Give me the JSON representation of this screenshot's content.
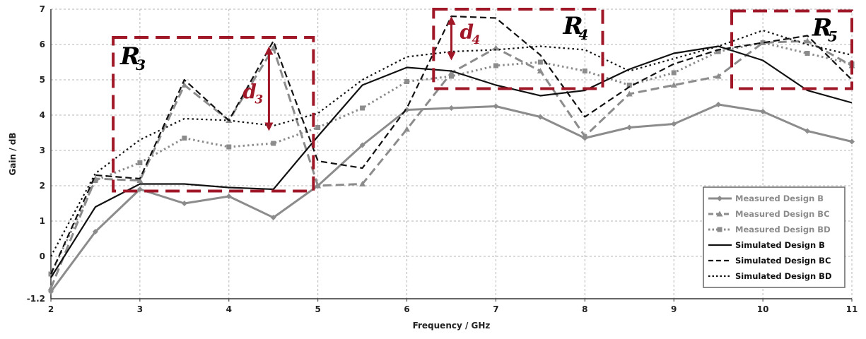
{
  "chart_data": {
    "type": "line",
    "xlabel": "Frequency / GHz",
    "ylabel": "Gain / dB",
    "xlim": [
      2,
      11
    ],
    "ylim": [
      -1.2,
      7
    ],
    "x_ticks": [
      "2",
      "3",
      "4",
      "5",
      "6",
      "7",
      "8",
      "9",
      "10",
      "11"
    ],
    "y_ticks": [
      "-1.2",
      "0",
      "1",
      "2",
      "3",
      "4",
      "5",
      "6",
      "7"
    ],
    "grid": true,
    "legend_position": "bottom-right",
    "x": [
      2,
      2.5,
      3,
      3.5,
      4,
      4.5,
      5,
      5.5,
      6,
      6.5,
      7,
      7.5,
      8,
      8.5,
      9,
      9.5,
      10,
      10.5,
      11
    ],
    "series": [
      {
        "name": "Measured Design B",
        "color": "#8c8c8c",
        "style": "solid-marker-diamond",
        "values": [
          -1.0,
          0.7,
          1.9,
          1.5,
          1.7,
          1.1,
          2.0,
          3.15,
          4.15,
          4.2,
          4.25,
          3.95,
          3.35,
          3.65,
          3.75,
          4.3,
          4.1,
          3.55,
          3.25
        ]
      },
      {
        "name": "Measured Design BC",
        "color": "#8c8c8c",
        "style": "dashed-marker-triangle",
        "values": [
          -0.9,
          2.2,
          2.15,
          4.85,
          3.85,
          5.9,
          2.0,
          2.05,
          3.6,
          5.2,
          5.9,
          5.25,
          3.4,
          4.6,
          4.85,
          5.1,
          6.05,
          6.1,
          5.4
        ]
      },
      {
        "name": "Measured Design BD",
        "color": "#8c8c8c",
        "style": "dotted-marker-square",
        "values": [
          -0.5,
          2.15,
          2.65,
          3.35,
          3.1,
          3.2,
          3.65,
          4.2,
          4.95,
          5.1,
          5.4,
          5.5,
          5.25,
          4.85,
          5.2,
          5.8,
          6.05,
          5.75,
          5.45
        ]
      },
      {
        "name": "Simulated Design B",
        "color": "#111111",
        "style": "solid",
        "values": [
          -0.6,
          1.4,
          2.05,
          2.05,
          1.95,
          1.9,
          3.4,
          4.85,
          5.35,
          5.25,
          4.85,
          4.55,
          4.7,
          5.3,
          5.75,
          5.95,
          5.55,
          4.7,
          4.35
        ]
      },
      {
        "name": "Simulated Design BC",
        "color": "#111111",
        "style": "dashed",
        "values": [
          -0.5,
          2.3,
          2.2,
          5.0,
          3.85,
          6.1,
          2.7,
          2.5,
          4.2,
          6.8,
          6.75,
          5.7,
          3.95,
          4.8,
          5.45,
          5.85,
          6.05,
          6.25,
          5.0
        ]
      },
      {
        "name": "Simulated Design BD",
        "color": "#111111",
        "style": "dotted",
        "values": [
          0.0,
          2.35,
          3.3,
          3.9,
          3.85,
          3.7,
          4.05,
          5.0,
          5.65,
          5.8,
          5.85,
          5.95,
          5.85,
          5.25,
          5.6,
          5.95,
          6.4,
          6.0,
          5.7
        ]
      }
    ],
    "annotations": {
      "regions": [
        {
          "label": "R",
          "sub": "3",
          "x0": 2.7,
          "x1": 4.95,
          "y0": 1.85,
          "y1": 6.2
        },
        {
          "label": "R",
          "sub": "4",
          "x0": 6.3,
          "x1": 8.2,
          "y0": 4.75,
          "y1": 7.0
        },
        {
          "label": "R",
          "sub": "5",
          "x0": 9.65,
          "x1": 11.0,
          "y0": 4.75,
          "y1": 6.95
        }
      ],
      "distances": [
        {
          "label": "d",
          "sub": "3",
          "x": 4.45,
          "y_top": 5.95,
          "y_bottom": 3.55
        },
        {
          "label": "d",
          "sub": "4",
          "x": 6.5,
          "y_top": 6.8,
          "y_bottom": 5.55
        }
      ]
    }
  }
}
